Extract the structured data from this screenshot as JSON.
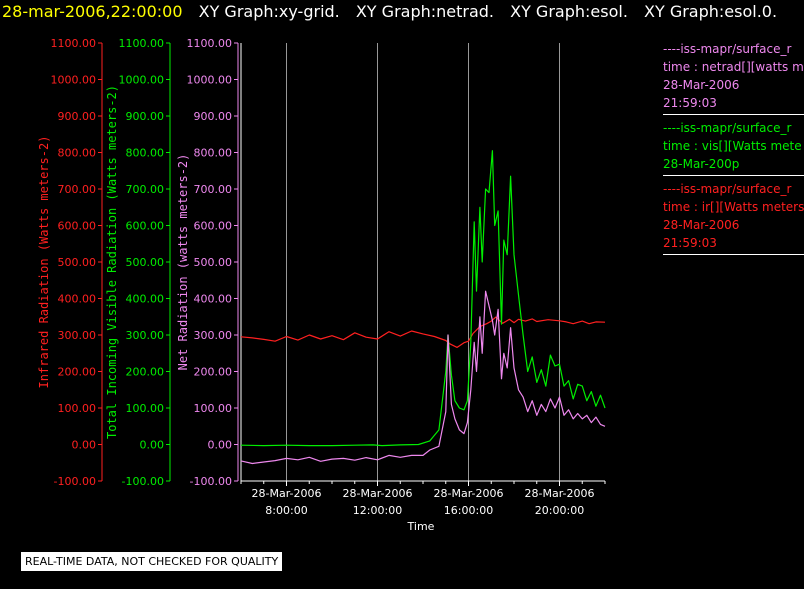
{
  "header": {
    "timestamp": "28-mar-2006,22:00:00",
    "graph_titles": [
      "XY Graph:xy-grid.",
      "XY Graph:netrad.",
      "XY Graph:esol.",
      "XY Graph:esol.0."
    ]
  },
  "colors": {
    "infrared": "#ff2020",
    "visible": "#00ee00",
    "net": "#ee88ee",
    "grid": "#ffffff",
    "background": "#000000",
    "timestamp": "#ffff00"
  },
  "legend": [
    {
      "color_key": "net",
      "lines": [
        "----iss-mapr/surface_r",
        "time : netrad[][watts m",
        "28-Mar-2006",
        "21:59:03"
      ]
    },
    {
      "color_key": "visible",
      "lines": [
        "----iss-mapr/surface_r",
        "time : vis[][Watts mete",
        "28-Mar-200p"
      ]
    },
    {
      "color_key": "infrared",
      "lines": [
        "----iss-mapr/surface_r",
        "time : ir[][Watts meters",
        "28-Mar-2006",
        "21:59:03"
      ]
    }
  ],
  "disclaimer": "REAL-TIME DATA, NOT CHECKED FOR QUALITY",
  "chart_data": {
    "type": "line",
    "xlabel": "Time",
    "x_unit": "hour of 28-Mar-2006",
    "xlim": [
      6.0,
      22.0
    ],
    "x_ticks": [
      {
        "x": 8,
        "date": "28-Mar-2006",
        "time": "8:00:00"
      },
      {
        "x": 12,
        "date": "28-Mar-2006",
        "time": "12:00:00"
      },
      {
        "x": 16,
        "date": "28-Mar-2006",
        "time": "16:00:00"
      },
      {
        "x": 20,
        "date": "28-Mar-2006",
        "time": "20:00:00"
      }
    ],
    "grid": true,
    "ylim": [
      -100,
      1100
    ],
    "y_ticks": [
      -100,
      0,
      100,
      200,
      300,
      400,
      500,
      600,
      700,
      800,
      900,
      1000,
      1100
    ],
    "y_axes": [
      {
        "label": "Infrared Radiation (Watts meters-2)",
        "color_key": "infrared",
        "tick_labels": [
          "-100.00",
          "0.00",
          "100.00",
          "200.00",
          "300.00",
          "400.00",
          "500.00",
          "600.00",
          "700.00",
          "800.00",
          "900.00",
          "1000.00",
          "1100.00"
        ]
      },
      {
        "label": "Total Incoming Visible Radiation (Watts meters-2)",
        "color_key": "visible",
        "tick_labels": [
          "-100.00",
          "0.00",
          "100.00",
          "200.00",
          "300.00",
          "400.00",
          "500.00",
          "600.00",
          "700.00",
          "800.00",
          "900.00",
          "1000.00",
          "1100.00"
        ]
      },
      {
        "label": "Net Radiation (watts meters-2)",
        "color_key": "net",
        "tick_labels": [
          "-100.00",
          "0.00",
          "100.00",
          "200.00",
          "300.00",
          "400.00",
          "500.00",
          "600.00",
          "700.00",
          "800.00",
          "900.00",
          "1000.00",
          "1100.00"
        ]
      }
    ],
    "series": [
      {
        "key": "infrared",
        "x": [
          6.0,
          6.5,
          7.0,
          7.5,
          8.0,
          8.5,
          9.0,
          9.5,
          10.0,
          10.5,
          11.0,
          11.5,
          12.0,
          12.5,
          13.0,
          13.5,
          14.0,
          14.5,
          15.0,
          15.2,
          15.5,
          15.8,
          16.0,
          16.2,
          16.5,
          16.8,
          17.0,
          17.2,
          17.5,
          17.8,
          18.0,
          18.2,
          18.5,
          18.8,
          19.0,
          19.5,
          20.0,
          20.3,
          20.6,
          21.0,
          21.3,
          21.6,
          22.0
        ],
        "y": [
          295,
          292,
          288,
          283,
          296,
          286,
          300,
          289,
          298,
          287,
          306,
          294,
          289,
          309,
          297,
          311,
          303,
          296,
          285,
          275,
          266,
          279,
          283,
          304,
          323,
          331,
          338,
          349,
          332,
          343,
          334,
          343,
          338,
          344,
          337,
          342,
          339,
          336,
          331,
          338,
          331,
          336,
          335
        ]
      },
      {
        "key": "visible",
        "x": [
          6.0,
          7.0,
          8.0,
          9.0,
          10.0,
          11.0,
          11.8,
          12.2,
          13.0,
          13.8,
          14.3,
          14.7,
          15.0,
          15.1,
          15.25,
          15.4,
          15.6,
          15.8,
          15.95,
          16.1,
          16.25,
          16.35,
          16.5,
          16.6,
          16.75,
          16.9,
          17.05,
          17.15,
          17.3,
          17.45,
          17.55,
          17.7,
          17.85,
          18.0,
          18.2,
          18.4,
          18.6,
          18.8,
          19.0,
          19.2,
          19.4,
          19.6,
          19.8,
          20.0,
          20.2,
          20.4,
          20.6,
          20.8,
          21.0,
          21.2,
          21.4,
          21.6,
          21.8,
          22.0
        ],
        "y": [
          -2,
          -3,
          -2,
          -3,
          -3,
          -2,
          -1,
          -3,
          -1,
          0,
          10,
          40,
          200,
          300,
          190,
          120,
          100,
          95,
          120,
          280,
          610,
          420,
          650,
          500,
          700,
          690,
          805,
          600,
          640,
          330,
          560,
          520,
          735,
          520,
          410,
          300,
          200,
          240,
          170,
          205,
          160,
          245,
          215,
          220,
          160,
          175,
          125,
          165,
          160,
          120,
          145,
          105,
          135,
          100
        ]
      },
      {
        "key": "net",
        "x": [
          6.0,
          6.5,
          7.0,
          7.5,
          8.0,
          8.5,
          9.0,
          9.5,
          10.0,
          10.5,
          11.0,
          11.5,
          12.0,
          12.5,
          13.0,
          13.5,
          14.0,
          14.3,
          14.7,
          15.0,
          15.1,
          15.25,
          15.4,
          15.6,
          15.8,
          15.95,
          16.1,
          16.25,
          16.35,
          16.5,
          16.6,
          16.75,
          16.9,
          17.05,
          17.15,
          17.3,
          17.45,
          17.55,
          17.7,
          17.85,
          18.0,
          18.2,
          18.4,
          18.6,
          18.8,
          19.0,
          19.2,
          19.4,
          19.6,
          19.8,
          20.0,
          20.2,
          20.4,
          20.6,
          20.8,
          21.0,
          21.2,
          21.4,
          21.6,
          21.8,
          22.0
        ],
        "y": [
          -45,
          -52,
          -48,
          -44,
          -38,
          -42,
          -35,
          -46,
          -40,
          -38,
          -43,
          -36,
          -42,
          -30,
          -35,
          -30,
          -30,
          -15,
          -5,
          90,
          300,
          110,
          70,
          40,
          30,
          60,
          150,
          280,
          200,
          350,
          250,
          420,
          380,
          340,
          300,
          370,
          180,
          250,
          210,
          320,
          210,
          150,
          130,
          90,
          120,
          80,
          110,
          90,
          125,
          100,
          130,
          80,
          95,
          70,
          85,
          70,
          80,
          60,
          75,
          55,
          50
        ]
      }
    ]
  }
}
